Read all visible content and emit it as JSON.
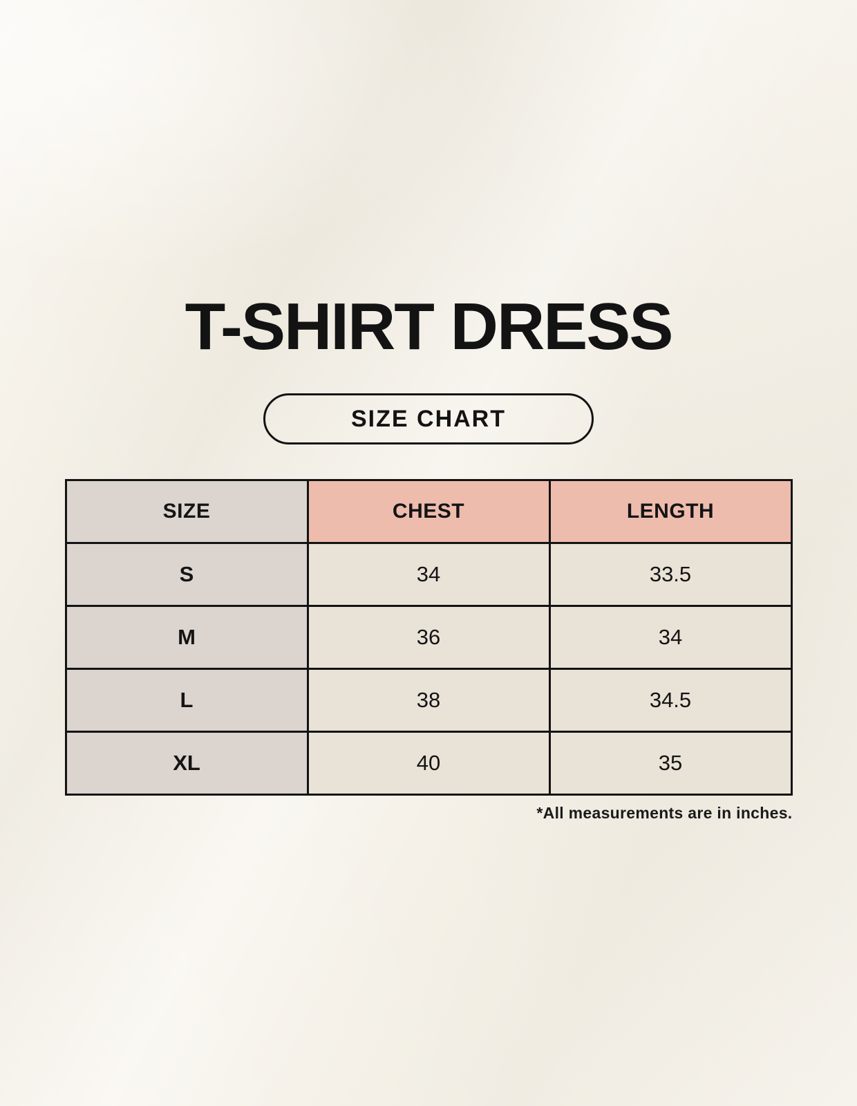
{
  "header": {
    "title": "T-SHIRT DRESS",
    "badge_label": "SIZE CHART"
  },
  "chart_data": {
    "type": "table",
    "title": "T-SHIRT DRESS",
    "subtitle": "SIZE CHART",
    "columns": [
      "SIZE",
      "CHEST",
      "LENGTH"
    ],
    "rows": [
      {
        "size": "S",
        "chest": "34",
        "length": "33.5"
      },
      {
        "size": "M",
        "chest": "36",
        "length": "34"
      },
      {
        "size": "L",
        "chest": "38",
        "length": "34.5"
      },
      {
        "size": "XL",
        "chest": "40",
        "length": "35"
      }
    ],
    "units_note": "*All measurements are in inches.",
    "layout": {
      "grid": true,
      "header_row": true,
      "label_column": true
    }
  },
  "colors": {
    "background": "#f5f1e8",
    "label_column_bg": "#dbd4cf",
    "measure_header_bg": "#eebcad",
    "value_cell_bg": "#e9e2d7",
    "border": "#131313",
    "text": "#141414"
  }
}
